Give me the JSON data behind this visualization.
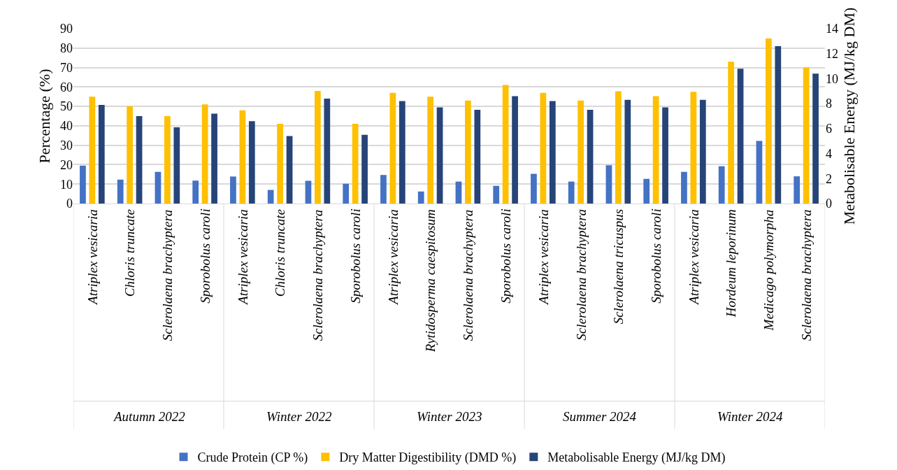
{
  "chart_data": {
    "type": "bar",
    "categories": [
      "Atriplex vesicaria",
      "Chloris truncate",
      "Sclerolaena brachyptera",
      "Sporobolus caroli",
      "Atriplex vesicaria",
      "Chloris truncate",
      "Sclerolaena brachyptera",
      "Sporobolus caroli",
      "Atriplex vesicaria",
      "Rytidosperma caespitosum",
      "Sclerolaena brachyptera",
      "Sporobolus caroli",
      "Atriplex vesicaria",
      "Sclerolaena brachyptera",
      "Sclerolaena tricuspus",
      "Sporobolus caroli",
      "Atriplex vesicaria",
      "Hordeum leporinum",
      "Medicago polymorpha",
      "Sclerolaena brachyptera"
    ],
    "annotations": [
      "Autumn 2022",
      "Winter 2022",
      "Winter 2023",
      "Summer 2024",
      "Winter 2024"
    ],
    "series": [
      {
        "name": "Crude Protein (CP %)",
        "color": "#4472c4",
        "values": [
          19.5,
          12.3,
          16.3,
          11.8,
          13.9,
          7.0,
          11.7,
          10.2,
          14.7,
          6.2,
          11.3,
          9.1,
          15.3,
          11.3,
          19.7,
          12.7,
          16.3,
          19.2,
          32.2,
          14.0
        ]
      },
      {
        "name": "Dry Matter Digestibility (DMD %)",
        "color": "#ffc000",
        "values": [
          55,
          50,
          45,
          51,
          48,
          41,
          58,
          41,
          57,
          55,
          53,
          61,
          57,
          53,
          57.8,
          55.3,
          57.5,
          73,
          85,
          70
        ]
      },
      {
        "name": "Metabolisable Energy (MJ/kg DM)",
        "color": "#264478",
        "axis": "y2",
        "values": [
          7.9,
          7.0,
          6.1,
          7.2,
          6.6,
          5.4,
          8.4,
          5.5,
          8.2,
          7.7,
          7.5,
          8.6,
          8.2,
          7.5,
          8.3,
          7.7,
          8.3,
          10.8,
          12.6,
          10.4
        ]
      }
    ],
    "ylabel": "Percentage (%)",
    "y2label": "Metabolisable Energy (MJ/kg DM)",
    "ylim": [
      0,
      90
    ],
    "yticks": [
      0,
      10,
      20,
      30,
      40,
      50,
      60,
      70,
      80,
      90
    ],
    "y2lim": [
      0,
      14
    ],
    "y2ticks": [
      0,
      2,
      4,
      6,
      8,
      10,
      12,
      14
    ],
    "grid": "y",
    "legend": "bottom"
  }
}
